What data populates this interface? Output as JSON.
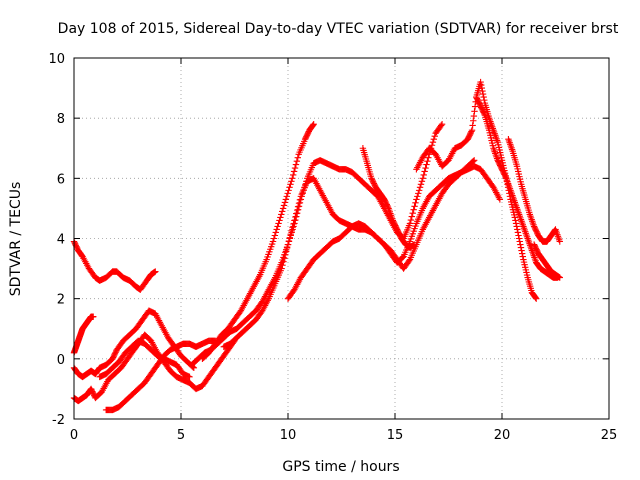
{
  "chart_data": {
    "type": "scatter",
    "title": "Day 108 of 2015, Sidereal Day-to-day VTEC variation (SDTVAR) for receiver brst",
    "xlabel": "GPS time / hours",
    "ylabel": "SDTVAR / TECUs",
    "xlim": [
      0,
      25
    ],
    "ylim": [
      -2,
      10
    ],
    "xticks": [
      "0",
      "5",
      "10",
      "15",
      "20",
      "25"
    ],
    "yticks": [
      "-2",
      "0",
      "2",
      "4",
      "6",
      "8",
      "10"
    ],
    "grid": true,
    "marker": "+",
    "color": "#ff0000",
    "series": [
      {
        "name": "track-1",
        "x": [
          0.0,
          0.2,
          0.4,
          0.7,
          1.0,
          1.2,
          1.5,
          1.8,
          2.0,
          2.3,
          2.6,
          2.9,
          3.1,
          3.4,
          3.6,
          3.8
        ],
        "y": [
          3.9,
          3.6,
          3.4,
          3.0,
          2.7,
          2.6,
          2.7,
          2.9,
          2.9,
          2.7,
          2.6,
          2.4,
          2.3,
          2.6,
          2.8,
          2.9
        ]
      },
      {
        "name": "track-2",
        "x": [
          0.0,
          0.2,
          0.4,
          0.6,
          0.8,
          1.0,
          1.2,
          1.5,
          1.8,
          2.0,
          2.3,
          2.6,
          2.9,
          3.2,
          3.5,
          3.8,
          4.1,
          4.4,
          4.7,
          5.0,
          5.3,
          5.6
        ],
        "y": [
          -0.3,
          -0.5,
          -0.6,
          -0.5,
          -0.4,
          -0.5,
          -0.3,
          -0.2,
          0.0,
          0.3,
          0.6,
          0.8,
          1.0,
          1.3,
          1.6,
          1.5,
          1.1,
          0.7,
          0.4,
          0.1,
          -0.1,
          -0.3
        ]
      },
      {
        "name": "track-3",
        "x": [
          0.0,
          0.2,
          0.4,
          0.6,
          0.8,
          1.0,
          1.3,
          1.6,
          1.9,
          2.2,
          2.5,
          2.8,
          3.0,
          3.3,
          3.6,
          3.9,
          4.2,
          4.5,
          4.8,
          5.1,
          5.4,
          5.7,
          6.0,
          6.3,
          6.6,
          6.9,
          7.2,
          7.5
        ],
        "y": [
          -1.3,
          -1.4,
          -1.3,
          -1.2,
          -1.0,
          -1.3,
          -1.1,
          -0.7,
          -0.5,
          -0.3,
          0.0,
          0.3,
          0.5,
          0.8,
          0.6,
          0.2,
          -0.1,
          -0.4,
          -0.6,
          -0.7,
          -0.8,
          -1.0,
          -0.9,
          -0.6,
          -0.3,
          0.0,
          0.3,
          0.6
        ]
      },
      {
        "name": "track-4",
        "x": [
          0.0,
          0.1,
          0.2,
          0.3,
          0.4,
          0.5,
          0.6,
          0.7,
          0.8,
          0.9
        ],
        "y": [
          0.2,
          0.4,
          0.6,
          0.8,
          1.0,
          1.1,
          1.2,
          1.3,
          1.4,
          1.4
        ]
      },
      {
        "name": "track-5",
        "x": [
          1.5,
          1.8,
          2.1,
          2.4,
          2.7,
          3.0,
          3.3,
          3.6,
          3.9,
          4.2,
          4.5,
          4.8,
          5.1,
          5.4,
          5.7,
          6.0,
          6.3,
          6.6
        ],
        "y": [
          -1.7,
          -1.7,
          -1.6,
          -1.4,
          -1.2,
          -1.0,
          -0.8,
          -0.5,
          -0.2,
          0.1,
          0.3,
          0.4,
          0.5,
          0.5,
          0.4,
          0.5,
          0.6,
          0.6
        ]
      },
      {
        "name": "track-6",
        "x": [
          1.2,
          1.5,
          1.8,
          2.1,
          2.4,
          2.7,
          3.0,
          3.3,
          3.6,
          3.9,
          4.2,
          4.5,
          4.8,
          5.1,
          5.4
        ],
        "y": [
          -0.6,
          -0.5,
          -0.3,
          -0.1,
          0.2,
          0.4,
          0.6,
          0.5,
          0.3,
          0.1,
          0.0,
          -0.1,
          -0.2,
          -0.5,
          -0.6
        ]
      },
      {
        "name": "track-7",
        "x": [
          5.5,
          5.8,
          6.1,
          6.4,
          6.7,
          7.0,
          7.3,
          7.6,
          7.9,
          8.2,
          8.5,
          8.8,
          9.1,
          9.4,
          9.7,
          10.0,
          10.3,
          10.6,
          10.9,
          11.2,
          11.5,
          11.8,
          12.1,
          12.4,
          12.7,
          13.0,
          13.3,
          13.6,
          13.9,
          14.2,
          14.5,
          14.8,
          15.1,
          15.4,
          15.7,
          16.0,
          16.3,
          16.6,
          16.9,
          17.2
        ],
        "y": [
          -0.2,
          0.0,
          0.2,
          0.3,
          0.5,
          0.7,
          0.9,
          1.0,
          1.2,
          1.4,
          1.6,
          1.9,
          2.3,
          2.7,
          3.2,
          3.8,
          4.5,
          5.3,
          6.0,
          6.5,
          6.6,
          6.5,
          6.4,
          6.3,
          6.3,
          6.2,
          6.0,
          5.8,
          5.6,
          5.4,
          5.0,
          4.6,
          4.2,
          4.0,
          4.5,
          5.3,
          6.0,
          6.8,
          7.5,
          7.8
        ]
      },
      {
        "name": "track-8",
        "x": [
          6.0,
          6.3,
          6.6,
          6.9,
          7.2,
          7.5,
          7.8,
          8.1,
          8.4,
          8.7,
          9.0,
          9.3,
          9.6,
          9.9,
          10.2,
          10.5,
          10.8,
          11.0,
          11.2
        ],
        "y": [
          0.0,
          0.2,
          0.5,
          0.8,
          1.0,
          1.3,
          1.6,
          2.0,
          2.4,
          2.8,
          3.3,
          3.9,
          4.6,
          5.3,
          6.0,
          6.8,
          7.3,
          7.6,
          7.8
        ]
      },
      {
        "name": "track-9",
        "x": [
          7.0,
          7.3,
          7.6,
          7.9,
          8.2,
          8.5,
          8.8,
          9.1,
          9.4,
          9.7,
          10.0,
          10.3,
          10.6,
          10.9,
          11.2,
          11.5,
          11.8,
          12.1,
          12.4,
          12.7,
          13.0,
          13.3,
          13.6,
          13.9,
          14.2,
          14.5,
          14.8,
          15.1,
          15.4,
          15.7,
          16.0,
          16.3,
          16.6,
          16.9,
          17.2,
          17.5,
          17.8,
          18.1,
          18.4,
          18.7,
          19.0,
          19.3,
          19.6,
          19.9
        ],
        "y": [
          0.4,
          0.5,
          0.7,
          0.9,
          1.1,
          1.3,
          1.6,
          2.0,
          2.5,
          3.0,
          3.8,
          4.6,
          5.4,
          5.9,
          6.0,
          5.6,
          5.2,
          4.8,
          4.6,
          4.5,
          4.4,
          4.3,
          4.3,
          4.2,
          4.0,
          3.8,
          3.5,
          3.2,
          3.4,
          3.9,
          4.5,
          5.0,
          5.4,
          5.6,
          5.8,
          6.0,
          6.1,
          6.2,
          6.3,
          6.4,
          6.3,
          6.0,
          5.7,
          5.3
        ]
      },
      {
        "name": "track-10",
        "x": [
          10.0,
          10.3,
          10.6,
          10.9,
          11.2,
          11.5,
          11.8,
          12.1,
          12.4,
          12.7,
          13.0,
          13.3,
          13.6,
          13.9,
          14.2,
          14.5,
          14.8,
          15.1,
          15.4,
          15.7,
          16.0,
          16.3,
          16.6,
          16.9,
          17.2,
          17.5,
          17.8,
          18.1,
          18.4,
          18.7
        ],
        "y": [
          2.0,
          2.3,
          2.7,
          3.0,
          3.3,
          3.5,
          3.7,
          3.9,
          4.0,
          4.2,
          4.4,
          4.5,
          4.4,
          4.2,
          4.0,
          3.8,
          3.6,
          3.3,
          3.0,
          3.3,
          3.8,
          4.3,
          4.7,
          5.1,
          5.5,
          5.8,
          6.0,
          6.2,
          6.4,
          6.6
        ]
      },
      {
        "name": "track-11",
        "x": [
          13.5,
          13.7,
          13.9,
          14.1,
          14.3,
          14.5,
          14.7,
          14.9,
          15.1,
          15.3,
          15.5,
          15.7,
          15.9
        ],
        "y": [
          7.0,
          6.5,
          6.0,
          5.7,
          5.5,
          5.3,
          5.0,
          4.6,
          4.3,
          4.0,
          3.8,
          3.7,
          3.8
        ]
      },
      {
        "name": "track-12",
        "x": [
          16.0,
          16.3,
          16.6,
          16.9,
          17.2,
          17.5,
          17.8,
          18.1,
          18.4,
          18.6,
          18.8,
          19.0,
          19.2,
          19.4,
          19.6,
          19.8,
          20.0,
          20.2,
          20.4,
          20.6,
          20.8,
          21.0,
          21.2,
          21.4,
          21.6
        ],
        "y": [
          6.3,
          6.7,
          7.0,
          6.8,
          6.4,
          6.6,
          7.0,
          7.1,
          7.3,
          7.6,
          8.7,
          9.2,
          8.5,
          8.0,
          7.6,
          7.2,
          6.6,
          6.0,
          5.3,
          4.7,
          4.0,
          3.3,
          2.7,
          2.2,
          2.0
        ]
      },
      {
        "name": "track-13",
        "x": [
          18.8,
          19.0,
          19.2,
          19.4,
          19.6,
          19.8,
          20.0,
          20.2,
          20.4,
          20.6,
          20.8,
          21.0,
          21.2,
          21.4,
          21.6,
          21.8,
          22.0,
          22.2,
          22.4,
          22.6
        ],
        "y": [
          8.7,
          8.4,
          8.1,
          7.6,
          7.0,
          6.6,
          6.3,
          6.0,
          5.6,
          5.2,
          4.8,
          4.4,
          4.0,
          3.6,
          3.2,
          3.0,
          2.9,
          2.8,
          2.7,
          2.7
        ]
      },
      {
        "name": "track-14",
        "x": [
          20.3,
          20.5,
          20.7,
          20.9,
          21.1,
          21.3,
          21.5,
          21.7,
          21.9,
          22.1,
          22.3,
          22.5,
          22.7
        ],
        "y": [
          7.3,
          6.9,
          6.4,
          5.8,
          5.3,
          4.8,
          4.4,
          4.1,
          3.9,
          3.9,
          4.1,
          4.3,
          3.9
        ]
      },
      {
        "name": "track-15",
        "x": [
          21.5,
          21.7,
          21.9,
          22.1,
          22.3,
          22.5,
          22.7
        ],
        "y": [
          3.8,
          3.5,
          3.3,
          3.1,
          2.9,
          2.8,
          2.7
        ]
      }
    ]
  }
}
